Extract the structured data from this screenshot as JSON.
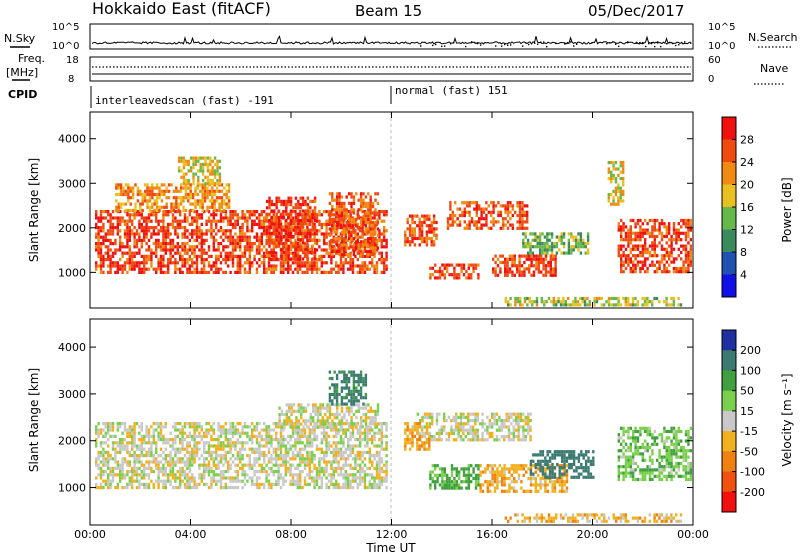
{
  "header": {
    "station": "Hokkaido East (fitACF)",
    "beam": "Beam 15",
    "date": "05/Dec/2017"
  },
  "params": {
    "nsky_label": "N.Sky",
    "nsearch_label": "N.Search",
    "freq_label_1": "Freq.",
    "freq_label_2": "[MHz]",
    "nave_label": "Nave",
    "cpid_label": "CPID",
    "nsky_ticks": [
      "10^5",
      "10^0"
    ],
    "nsearch_ticks": [
      "10^5",
      "10^0"
    ],
    "freq_ticks": [
      "18",
      "8"
    ],
    "nave_ticks": [
      "60",
      "0"
    ],
    "cpid_modes": [
      {
        "label": "interleavedscan (fast) -191",
        "start_hour": 0
      },
      {
        "label": "normal (fast) 151",
        "start_hour": 12
      }
    ]
  },
  "chart_data": [
    {
      "type": "heatmap",
      "panel": "power",
      "ylabel": "Slant Range [km]",
      "xlabel": "",
      "x_ticks": [
        "00:00",
        "04:00",
        "08:00",
        "12:00",
        "16:00",
        "20:00",
        "00:00"
      ],
      "y_ticks": [
        "1000",
        "2000",
        "3000",
        "4000"
      ],
      "xlim": [
        0,
        24
      ],
      "ylim": [
        200,
        4600
      ],
      "colorbar": {
        "label": "Power [dB]",
        "ticks": [
          "4",
          "8",
          "12",
          "16",
          "20",
          "24",
          "28"
        ],
        "range": [
          0,
          32
        ],
        "colors": [
          "#1010e8",
          "#2050b0",
          "#3a8a60",
          "#66b84a",
          "#e8c020",
          "#f08a10",
          "#f04a10",
          "#f01010"
        ]
      },
      "echo_regions": [
        {
          "t0": 0.2,
          "t1": 11.8,
          "r0": 1000,
          "r1": 2400,
          "level": 27
        },
        {
          "t0": 1.0,
          "t1": 5.5,
          "r0": 2400,
          "r1": 3000,
          "level": 22
        },
        {
          "t0": 3.5,
          "t1": 5.2,
          "r0": 3000,
          "r1": 3600,
          "level": 18
        },
        {
          "t0": 7.0,
          "t1": 9.0,
          "r0": 1300,
          "r1": 2700,
          "level": 28
        },
        {
          "t0": 9.5,
          "t1": 11.5,
          "r0": 1400,
          "r1": 2800,
          "level": 25
        },
        {
          "t0": 12.5,
          "t1": 13.8,
          "r0": 1600,
          "r1": 2300,
          "level": 26
        },
        {
          "t0": 14.2,
          "t1": 17.4,
          "r0": 2000,
          "r1": 2600,
          "level": 26
        },
        {
          "t0": 13.5,
          "t1": 15.5,
          "r0": 900,
          "r1": 1200,
          "level": 27
        },
        {
          "t0": 16.0,
          "t1": 18.5,
          "r0": 900,
          "r1": 1400,
          "level": 27
        },
        {
          "t0": 17.2,
          "t1": 19.8,
          "r0": 1400,
          "r1": 1900,
          "level": 13
        },
        {
          "t0": 20.6,
          "t1": 21.2,
          "r0": 2500,
          "r1": 3500,
          "level": 18
        },
        {
          "t0": 21.0,
          "t1": 23.9,
          "r0": 1000,
          "r1": 2200,
          "level": 27
        },
        {
          "t0": 16.5,
          "t1": 23.5,
          "r0": 250,
          "r1": 450,
          "level": 16
        }
      ]
    },
    {
      "type": "heatmap",
      "panel": "velocity",
      "ylabel": "Slant Range [km]",
      "xlabel": "Time UT",
      "x_ticks": [
        "00:00",
        "04:00",
        "08:00",
        "12:00",
        "16:00",
        "20:00",
        "00:00"
      ],
      "y_ticks": [
        "1000",
        "2000",
        "3000",
        "4000"
      ],
      "xlim": [
        0,
        24
      ],
      "ylim": [
        200,
        4600
      ],
      "colorbar": {
        "label": "Velocity [m s⁻¹]",
        "ticks": [
          "200",
          "100",
          "50",
          "15",
          "-15",
          "-50",
          "-100",
          "-200"
        ],
        "colors": [
          "#2030a0",
          "#3a7a70",
          "#40a040",
          "#7ad04a",
          "#c8c8c8",
          "#f0b020",
          "#f08010",
          "#f05010",
          "#f01010"
        ]
      },
      "echo_regions": [
        {
          "t0": 0.2,
          "t1": 11.8,
          "r0": 1000,
          "r1": 2400,
          "vel": 0
        },
        {
          "t0": 7.5,
          "t1": 11.5,
          "r0": 2300,
          "r1": 2800,
          "vel": 0
        },
        {
          "t0": 9.5,
          "t1": 11.0,
          "r0": 2800,
          "r1": 3500,
          "vel": 120
        },
        {
          "t0": 13.0,
          "t1": 17.5,
          "r0": 2000,
          "r1": 2600,
          "vel": 0
        },
        {
          "t0": 13.5,
          "t1": 15.5,
          "r0": 1000,
          "r1": 1500,
          "vel": 60
        },
        {
          "t0": 15.5,
          "t1": 19.0,
          "r0": 900,
          "r1": 1500,
          "vel": -40
        },
        {
          "t0": 17.5,
          "t1": 20.0,
          "r0": 1200,
          "r1": 1800,
          "vel": 150
        },
        {
          "t0": 21.0,
          "t1": 23.9,
          "r0": 1200,
          "r1": 2300,
          "vel": 40
        },
        {
          "t0": 12.5,
          "t1": 13.5,
          "r0": 1800,
          "r1": 2400,
          "vel": -40
        },
        {
          "t0": 16.5,
          "t1": 23.5,
          "r0": 250,
          "r1": 450,
          "vel": -30
        }
      ]
    }
  ]
}
